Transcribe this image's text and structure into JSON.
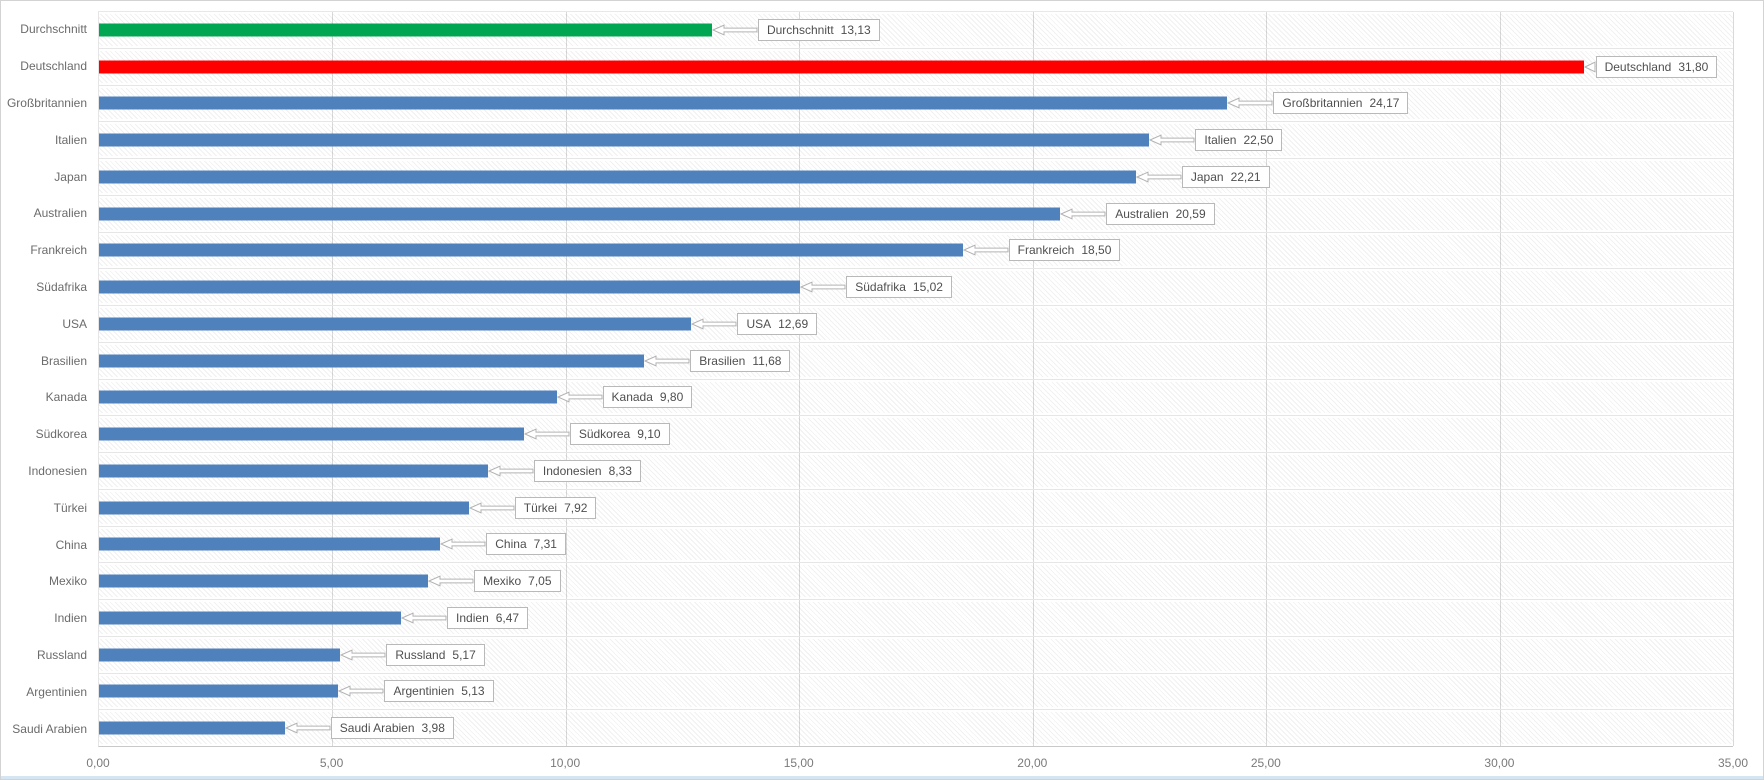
{
  "chart_data": {
    "type": "bar",
    "orientation": "horizontal",
    "title": "",
    "xlabel": "",
    "ylabel": "",
    "xlim": [
      0,
      35
    ],
    "grid": "vertical",
    "legend": "none",
    "plot_background": "diagonal-hatch",
    "x_axis": {
      "min": 0,
      "max": 35,
      "tick_step": 5,
      "tick_values": [
        0,
        5,
        10,
        15,
        20,
        25,
        30,
        35
      ],
      "tick_labels": [
        "0,00",
        "5,00",
        "10,00",
        "15,00",
        "20,00",
        "25,00",
        "30,00",
        "35,00"
      ]
    },
    "categories": [
      "Durchschnitt",
      "Deutschland",
      "Großbritannien",
      "Italien",
      "Japan",
      "Australien",
      "Frankreich",
      "Südafrika",
      "USA",
      "Brasilien",
      "Kanada",
      "Südkorea",
      "Indonesien",
      "Türkei",
      "China",
      "Mexiko",
      "Indien",
      "Russland",
      "Argentinien",
      "Saudi Arabien"
    ],
    "values": [
      13.13,
      31.8,
      24.17,
      22.5,
      22.21,
      20.59,
      18.5,
      15.02,
      12.69,
      11.68,
      9.8,
      9.1,
      8.33,
      7.92,
      7.31,
      7.05,
      6.47,
      5.17,
      5.13,
      3.98
    ],
    "value_labels": [
      "13,13",
      "31,80",
      "24,17",
      "22,50",
      "22,21",
      "20,59",
      "18,50",
      "15,02",
      "12,69",
      "11,68",
      "9,80",
      "9,10",
      "8,33",
      "7,92",
      "7,31",
      "7,05",
      "6,47",
      "5,17",
      "5,13",
      "3,98"
    ],
    "colors": {
      "average_bar": "#00A651",
      "highlight_bar": "#FF0000",
      "default_bar": "#4F81BD"
    },
    "rows": [
      {
        "label": "Durchschnitt",
        "value": 13.13,
        "value_text": "13,13",
        "color": "#00A651"
      },
      {
        "label": "Deutschland",
        "value": 31.8,
        "value_text": "31,80",
        "color": "#FF0000"
      },
      {
        "label": "Großbritannien",
        "value": 24.17,
        "value_text": "24,17",
        "color": "#4F81BD"
      },
      {
        "label": "Italien",
        "value": 22.5,
        "value_text": "22,50",
        "color": "#4F81BD"
      },
      {
        "label": "Japan",
        "value": 22.21,
        "value_text": "22,21",
        "color": "#4F81BD"
      },
      {
        "label": "Australien",
        "value": 20.59,
        "value_text": "20,59",
        "color": "#4F81BD"
      },
      {
        "label": "Frankreich",
        "value": 18.5,
        "value_text": "18,50",
        "color": "#4F81BD"
      },
      {
        "label": "Südafrika",
        "value": 15.02,
        "value_text": "15,02",
        "color": "#4F81BD"
      },
      {
        "label": "USA",
        "value": 12.69,
        "value_text": "12,69",
        "color": "#4F81BD"
      },
      {
        "label": "Brasilien",
        "value": 11.68,
        "value_text": "11,68",
        "color": "#4F81BD"
      },
      {
        "label": "Kanada",
        "value": 9.8,
        "value_text": "9,80",
        "color": "#4F81BD"
      },
      {
        "label": "Südkorea",
        "value": 9.1,
        "value_text": "9,10",
        "color": "#4F81BD"
      },
      {
        "label": "Indonesien",
        "value": 8.33,
        "value_text": "8,33",
        "color": "#4F81BD"
      },
      {
        "label": "Türkei",
        "value": 7.92,
        "value_text": "7,92",
        "color": "#4F81BD"
      },
      {
        "label": "China",
        "value": 7.31,
        "value_text": "7,31",
        "color": "#4F81BD"
      },
      {
        "label": "Mexiko",
        "value": 7.05,
        "value_text": "7,05",
        "color": "#4F81BD"
      },
      {
        "label": "Indien",
        "value": 6.47,
        "value_text": "6,47",
        "color": "#4F81BD"
      },
      {
        "label": "Russland",
        "value": 5.17,
        "value_text": "5,17",
        "color": "#4F81BD"
      },
      {
        "label": "Argentinien",
        "value": 5.13,
        "value_text": "5,13",
        "color": "#4F81BD"
      },
      {
        "label": "Saudi Arabien",
        "value": 3.98,
        "value_text": "3,98",
        "color": "#4F81BD"
      }
    ]
  }
}
